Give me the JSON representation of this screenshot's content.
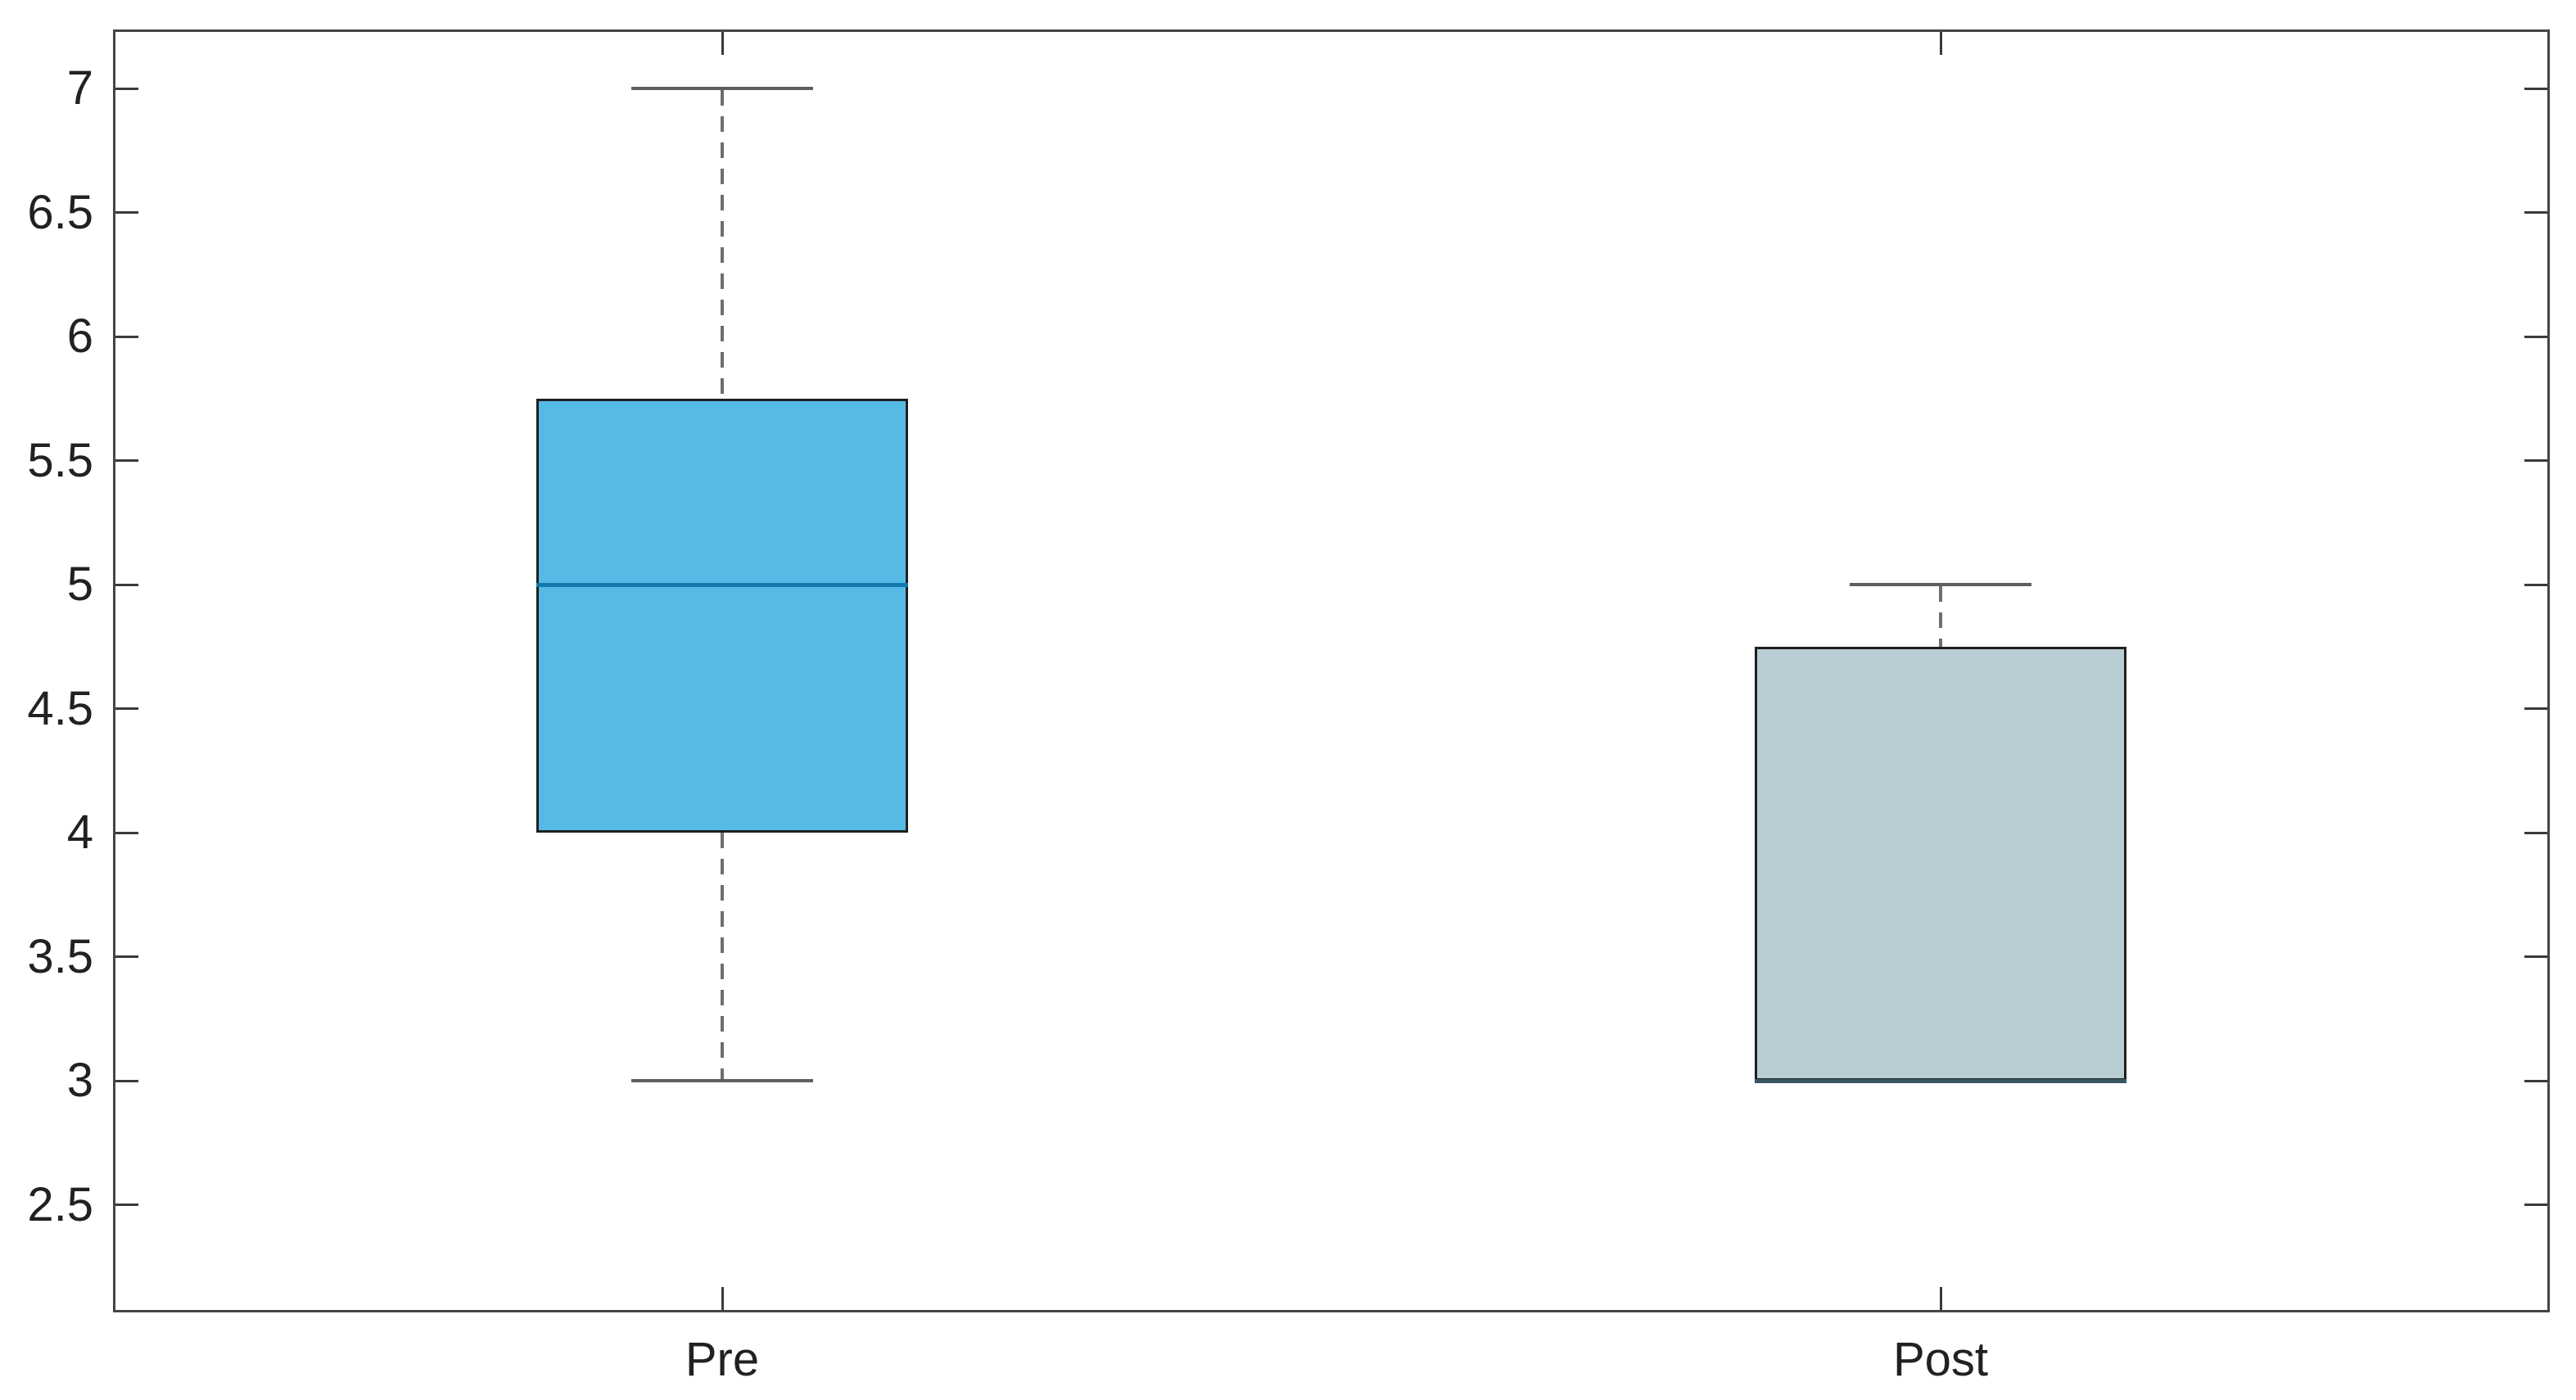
{
  "chart_data": {
    "type": "boxplot",
    "title": "",
    "xlabel": "",
    "ylabel": "",
    "categories": [
      "Pre",
      "Post"
    ],
    "x_positions": [
      1,
      2
    ],
    "xlim": [
      0.5,
      2.5
    ],
    "ylim": [
      2.07,
      7.24
    ],
    "yticks": [
      "2.5",
      "3",
      "3.5",
      "4",
      "4.5",
      "5",
      "5.5",
      "6",
      "6.5",
      "7"
    ],
    "ytick_values": [
      2.5,
      3,
      3.5,
      4,
      4.5,
      5,
      5.5,
      6,
      6.5,
      7
    ],
    "grid": false,
    "legend": null,
    "boxes": [
      {
        "category": "Pre",
        "whisker_low": 3,
        "q1": 4,
        "median": 5,
        "q3": 5.75,
        "whisker_high": 7,
        "fill_color": "#55bbe6",
        "edge_color": "#1f1f1f",
        "median_color": "#1478ad",
        "lower_whisker_visible": true,
        "upper_whisker_visible": true
      },
      {
        "category": "Post",
        "whisker_low": 3,
        "q1": 3,
        "median": 3,
        "q3": 4.75,
        "whisker_high": 5,
        "fill_color": "#b9cdd4",
        "edge_color": "#1f1f1f",
        "median_color": "#3a565f",
        "lower_whisker_visible": false,
        "upper_whisker_visible": true
      }
    ],
    "styles": {
      "whisker_color": "#6e6e6e",
      "whisker_dash": "dashed",
      "cap_color": "#5f5f5f",
      "axis_border_color": "#454545",
      "tick_mark_color": "#3a3a3a",
      "tick_label_color": "#212121",
      "background": "#ffffff",
      "box_on": true,
      "ticks_mirrored_all_sides": true,
      "tick_direction": "in"
    }
  }
}
